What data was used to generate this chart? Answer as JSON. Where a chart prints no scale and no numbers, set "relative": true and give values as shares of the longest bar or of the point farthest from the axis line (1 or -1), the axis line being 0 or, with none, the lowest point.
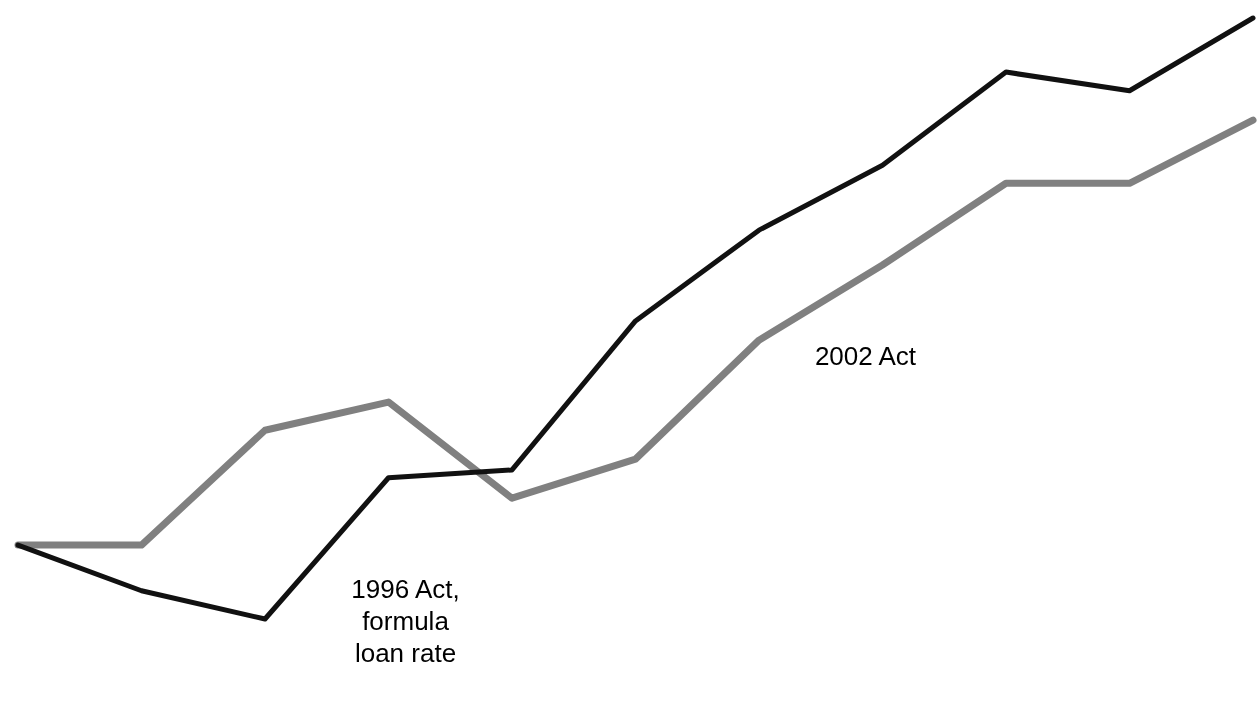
{
  "chart_data": {
    "type": "line",
    "relative": true,
    "categories": [
      null,
      null,
      null,
      null,
      null,
      null,
      null,
      null,
      null,
      null,
      null
    ],
    "series": [
      {
        "name": "2002 Act",
        "color": "#808080",
        "values": [
          0.123,
          0.123,
          0.314,
          0.361,
          0.201,
          0.266,
          0.464,
          0.589,
          0.725,
          0.725,
          0.83
        ]
      },
      {
        "name": "1996 Act, formula loan rate",
        "color": "#111111",
        "values": [
          0.123,
          0.047,
          0,
          0.235,
          0.248,
          0.496,
          0.647,
          0.755,
          0.91,
          0.879,
          1
        ]
      }
    ]
  }
}
